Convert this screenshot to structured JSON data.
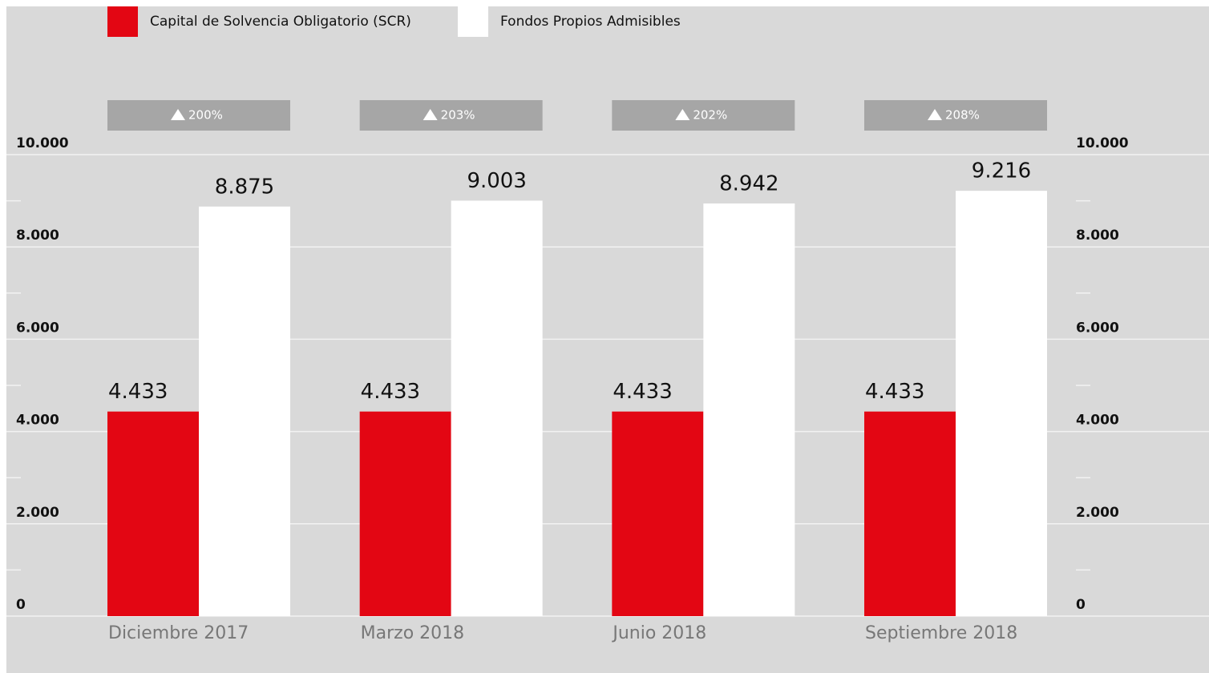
{
  "chart_data": {
    "type": "bar",
    "categories": [
      "Diciembre 2017",
      "Marzo 2018",
      "Junio 2018",
      "Septiembre 2018"
    ],
    "series": [
      {
        "name": "Capital de Solvencia Obligatorio (SCR)",
        "color": "#e30613",
        "values": [
          4433,
          4433,
          4433,
          4433
        ],
        "value_labels": [
          "4.433",
          "4.433",
          "4.433",
          "4.433"
        ]
      },
      {
        "name": "Fondos Propios Admisibles",
        "color": "#ffffff",
        "values": [
          8875,
          9003,
          8942,
          9216
        ],
        "value_labels": [
          "8.875",
          "9.003",
          "8.942",
          "9.216"
        ]
      }
    ],
    "ratios": {
      "values": [
        200,
        203,
        202,
        208
      ],
      "value_labels": [
        "200%",
        "203%",
        "202%",
        "208%"
      ],
      "color": "#a6a6a6"
    },
    "ylim": [
      0,
      10000
    ],
    "yticks": [
      0,
      {
        "value": 2000,
        "label": "2.000"
      },
      {
        "value": 4000,
        "label": "4.000"
      },
      {
        "value": 6000,
        "label": "6.000"
      },
      {
        "value": 8000,
        "label": "8.000"
      },
      {
        "value": 10000,
        "label": "10.000"
      }
    ],
    "minor_yticks": [
      1000,
      3000,
      5000,
      7000,
      9000
    ],
    "grid": true,
    "background": "#d9d9d9"
  }
}
